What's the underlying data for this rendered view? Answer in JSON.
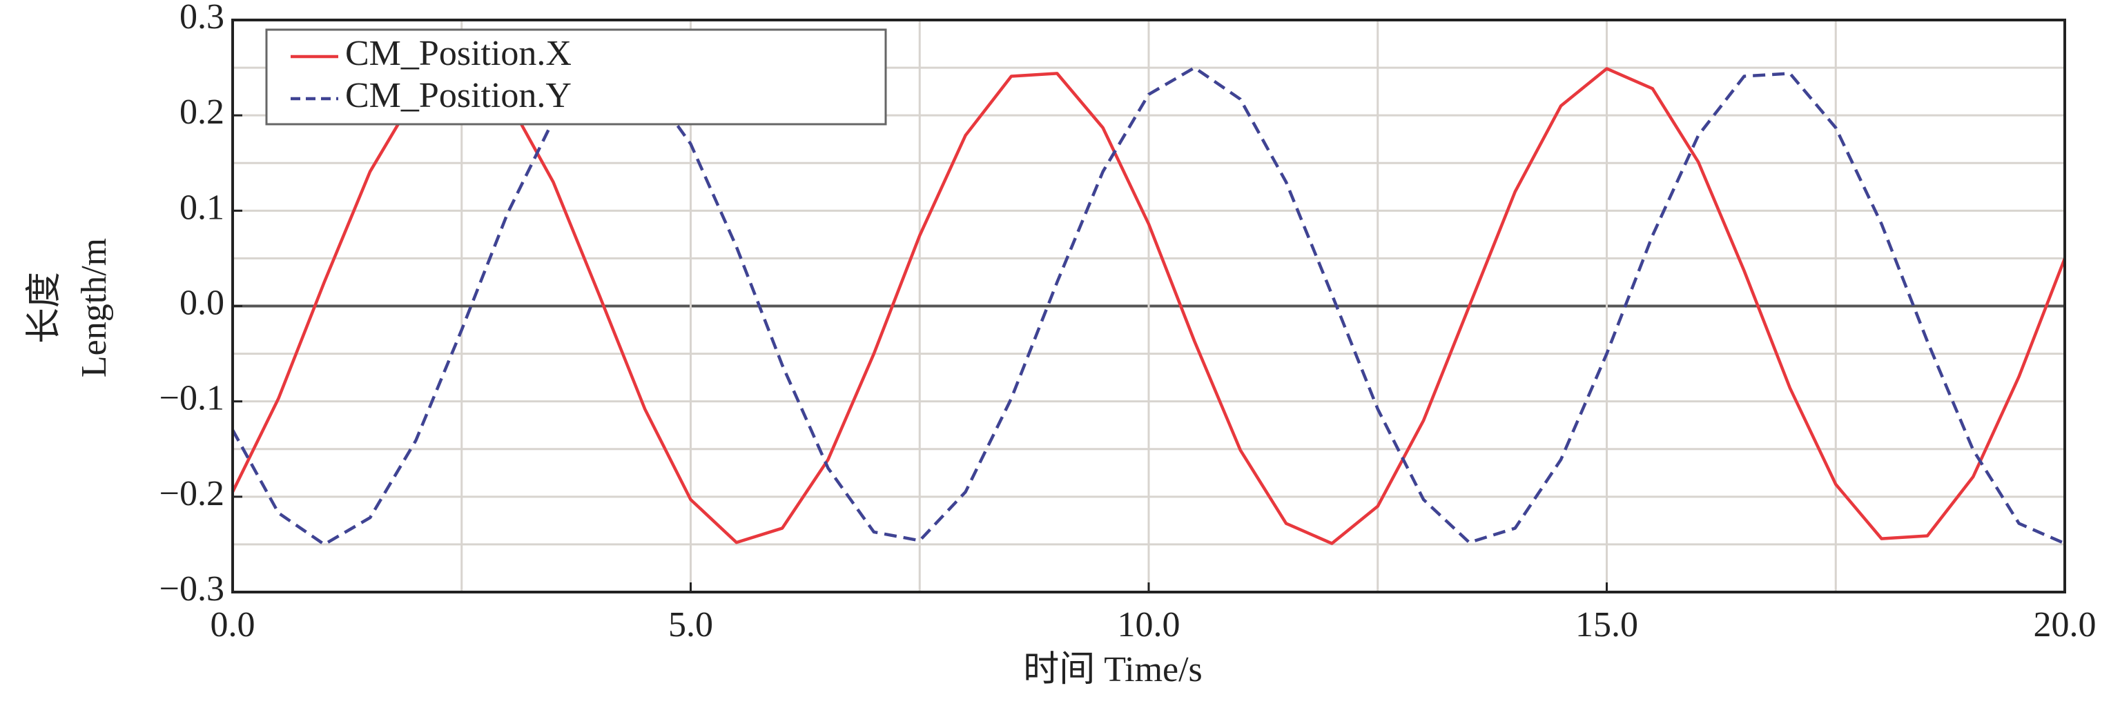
{
  "chart_data": {
    "type": "line",
    "xlabel": "时间 Time/s",
    "ylabel": [
      "长度",
      "Length/m"
    ],
    "x": [
      0,
      0.5,
      1,
      1.5,
      2,
      2.5,
      3,
      3.5,
      4,
      4.5,
      5,
      5.5,
      6,
      6.5,
      7,
      7.5,
      8,
      8.5,
      9,
      9.5,
      10,
      10.5,
      11,
      11.5,
      12,
      12.5,
      13,
      13.5,
      14,
      14.5,
      15,
      15.5,
      16,
      16.5,
      17,
      17.5,
      18,
      18.5,
      19,
      19.5,
      20
    ],
    "series": [
      {
        "name": "CM_Position.X",
        "color": "#e8383d",
        "linestyle": "solid",
        "values": [
          -0.195,
          -0.097,
          0.025,
          0.141,
          0.222,
          0.25,
          0.217,
          0.13,
          0.012,
          -0.108,
          -0.203,
          -0.248,
          -0.233,
          -0.161,
          -0.05,
          0.074,
          0.179,
          0.241,
          0.244,
          0.187,
          0.086,
          -0.037,
          -0.151,
          -0.228,
          -0.249,
          -0.21,
          -0.12,
          0,
          0.12,
          0.21,
          0.249,
          0.228,
          0.151,
          0.037,
          -0.086,
          -0.187,
          -0.244,
          -0.241,
          -0.179,
          -0.074,
          0.05
        ]
      },
      {
        "name": "CM_Position.Y",
        "color": "#3f4393",
        "linestyle": "dashed",
        "values": [
          -0.13,
          -0.217,
          -0.25,
          -0.222,
          -0.141,
          -0.025,
          0.097,
          0.195,
          0.246,
          0.237,
          0.17,
          0.062,
          -0.062,
          -0.17,
          -0.237,
          -0.246,
          -0.195,
          -0.097,
          0.025,
          0.141,
          0.222,
          0.25,
          0.217,
          0.13,
          0.012,
          -0.108,
          -0.203,
          -0.248,
          -0.233,
          -0.161,
          -0.05,
          0.074,
          0.179,
          0.241,
          0.244,
          0.187,
          0.086,
          -0.037,
          -0.151,
          -0.228,
          -0.249
        ]
      }
    ],
    "xlim": [
      0,
      20
    ],
    "ylim": [
      -0.3,
      0.3
    ],
    "xticks": [
      {
        "value": 0,
        "label": "0.0"
      },
      {
        "value": 5,
        "label": "5.0"
      },
      {
        "value": 10,
        "label": "10.0"
      },
      {
        "value": 15,
        "label": "15.0"
      },
      {
        "value": 20,
        "label": "20.0"
      }
    ],
    "yticks": [
      {
        "value": -0.3,
        "label": "−0.3"
      },
      {
        "value": -0.2,
        "label": "−0.2"
      },
      {
        "value": -0.1,
        "label": "−0.1"
      },
      {
        "value": 0,
        "label": "0.0"
      },
      0.1,
      0.2,
      0.3
    ],
    "xminorticks": [
      2.5,
      7.5,
      12.5,
      17.5
    ],
    "yminorticks": [
      -0.25,
      -0.15,
      -0.05,
      0.05,
      0.15,
      0.25
    ],
    "grid": true,
    "legend": "upper left"
  }
}
